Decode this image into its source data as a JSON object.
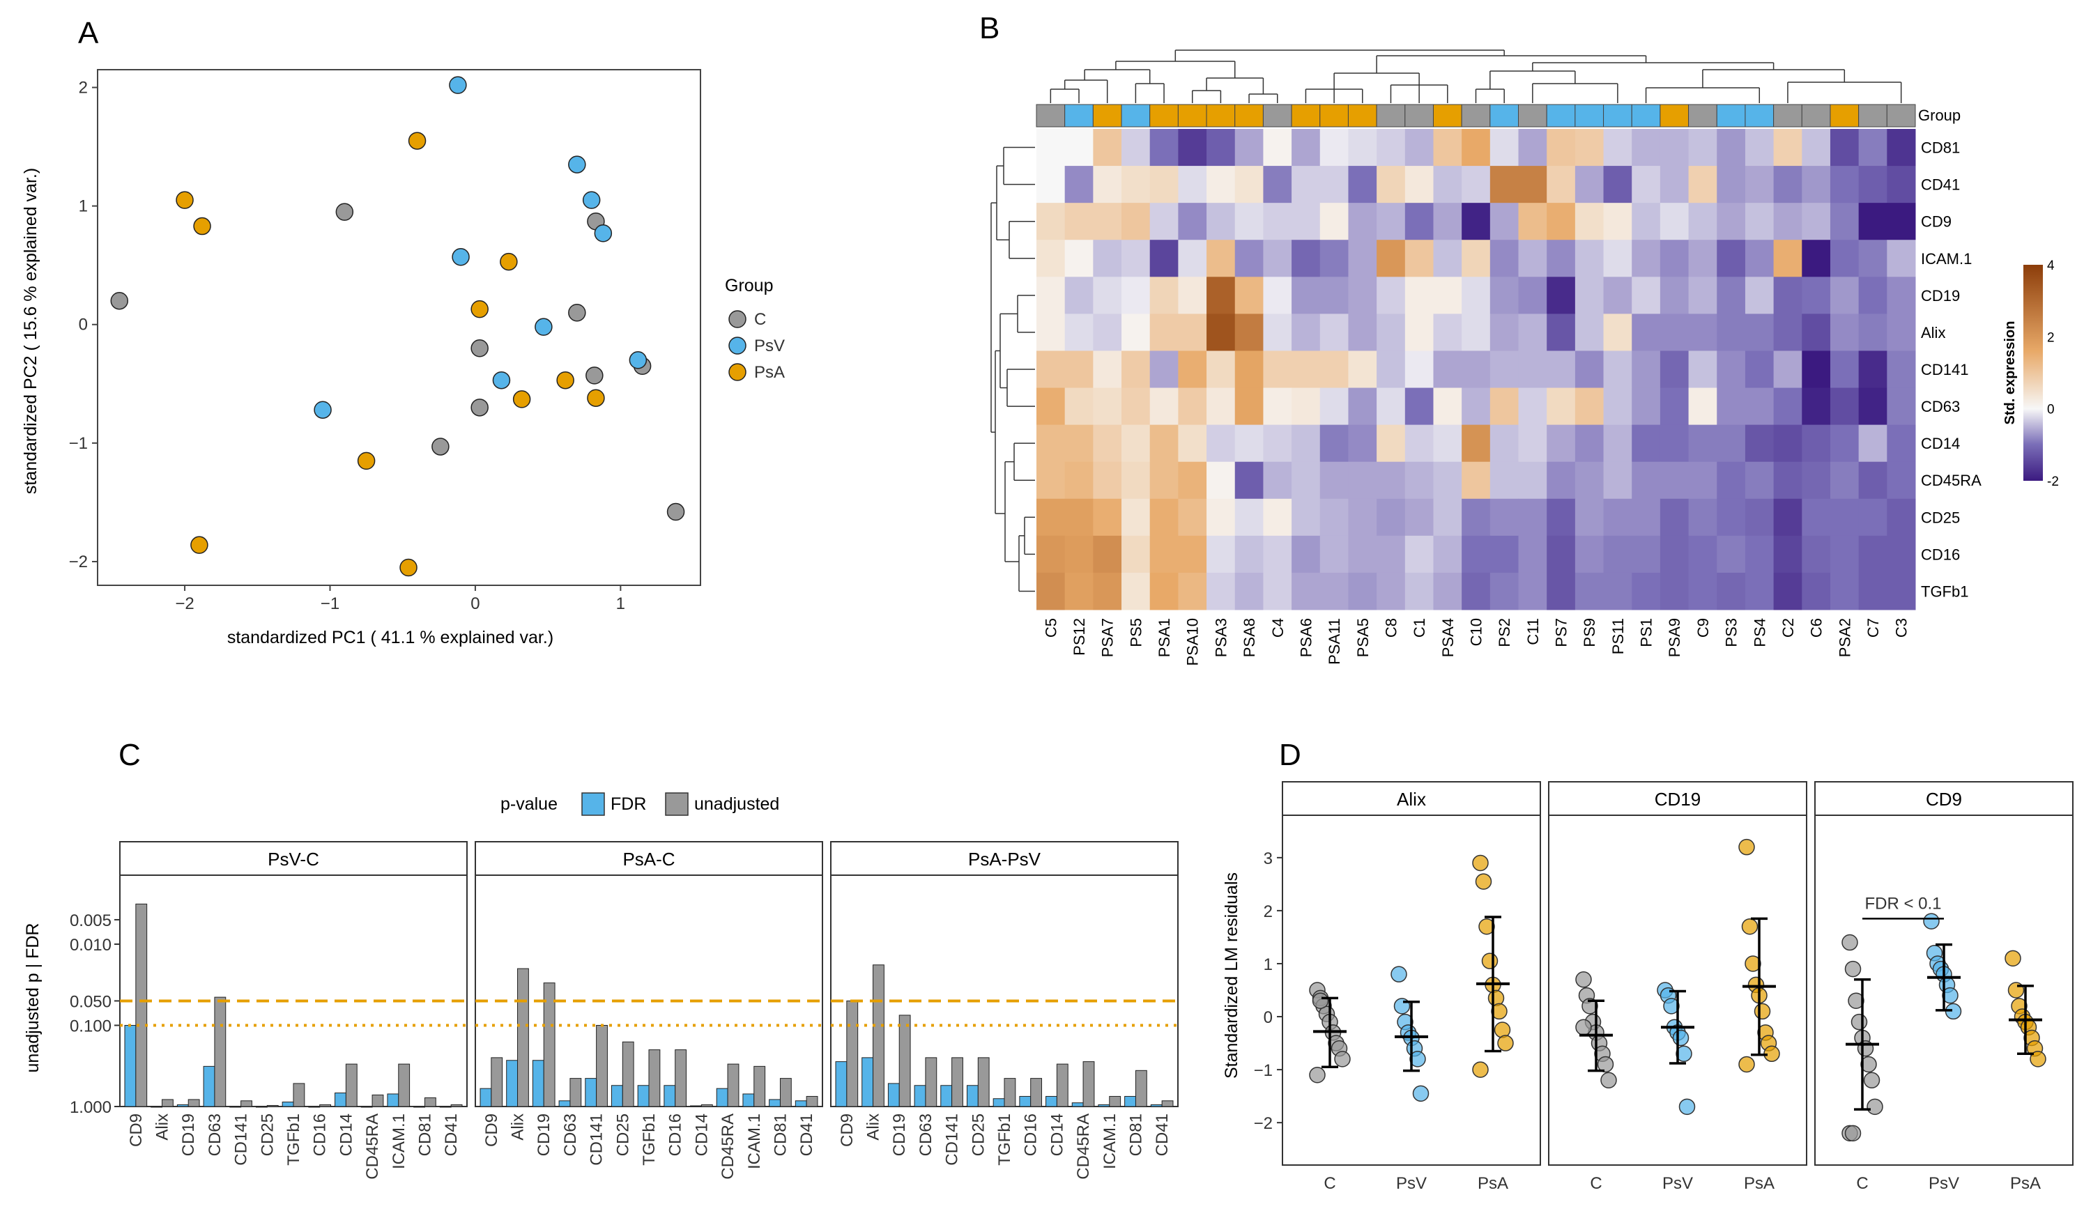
{
  "panels": {
    "A": "A",
    "B": "B",
    "C": "C",
    "D": "D"
  },
  "colors": {
    "C": "#999999",
    "PsV": "#56B4E9",
    "PsA": "#E69F00",
    "FDR": "#56B4E9",
    "unadjusted": "#999999",
    "hm_low": "#3B1A80",
    "hm_mid": "#F7F7F7",
    "hm_high": "#8C3D0A",
    "dash": "#E69F00"
  },
  "chart_data": [
    {
      "id": "A",
      "type": "scatter",
      "xlabel": "standardized PC1 ( 41.1 % explained var.)",
      "ylabel": "standardized PC2 ( 15.6 % explained var.)",
      "xlim": [
        -2.6,
        1.55
      ],
      "ylim": [
        -2.2,
        2.15
      ],
      "xticks": [
        "−2",
        "−1",
        "0",
        "1"
      ],
      "yticks": [
        "−2",
        "−1",
        "0",
        "1",
        "2"
      ],
      "legend": {
        "title": "Group",
        "items": [
          "C",
          "PsV",
          "PsA"
        ]
      },
      "points": [
        {
          "g": "C",
          "x": -2.45,
          "y": 0.2
        },
        {
          "g": "C",
          "x": -0.9,
          "y": 0.95
        },
        {
          "g": "C",
          "x": 0.83,
          "y": 0.87
        },
        {
          "g": "C",
          "x": 0.7,
          "y": 0.1
        },
        {
          "g": "C",
          "x": 0.03,
          "y": -0.2
        },
        {
          "g": "C",
          "x": 0.03,
          "y": -0.7
        },
        {
          "g": "C",
          "x": 0.82,
          "y": -0.43
        },
        {
          "g": "C",
          "x": 1.15,
          "y": -0.35
        },
        {
          "g": "C",
          "x": -0.24,
          "y": -1.03
        },
        {
          "g": "C",
          "x": 1.38,
          "y": -1.58
        },
        {
          "g": "PsV",
          "x": -0.12,
          "y": 2.02
        },
        {
          "g": "PsV",
          "x": 0.7,
          "y": 1.35
        },
        {
          "g": "PsV",
          "x": 0.8,
          "y": 1.05
        },
        {
          "g": "PsV",
          "x": 0.88,
          "y": 0.77
        },
        {
          "g": "PsV",
          "x": -0.1,
          "y": 0.57
        },
        {
          "g": "PsV",
          "x": 0.47,
          "y": -0.02
        },
        {
          "g": "PsV",
          "x": 0.18,
          "y": -0.47
        },
        {
          "g": "PsV",
          "x": 1.12,
          "y": -0.3
        },
        {
          "g": "PsV",
          "x": -1.05,
          "y": -0.72
        },
        {
          "g": "PsA",
          "x": -0.4,
          "y": 1.55
        },
        {
          "g": "PsA",
          "x": -2.0,
          "y": 1.05
        },
        {
          "g": "PsA",
          "x": -1.88,
          "y": 0.83
        },
        {
          "g": "PsA",
          "x": 0.23,
          "y": 0.53
        },
        {
          "g": "PsA",
          "x": 0.03,
          "y": 0.13
        },
        {
          "g": "PsA",
          "x": 0.32,
          "y": -0.63
        },
        {
          "g": "PsA",
          "x": 0.62,
          "y": -0.47
        },
        {
          "g": "PsA",
          "x": 0.83,
          "y": -0.62
        },
        {
          "g": "PsA",
          "x": -0.75,
          "y": -1.15
        },
        {
          "g": "PsA",
          "x": -1.9,
          "y": -1.86
        },
        {
          "g": "PsA",
          "x": -0.46,
          "y": -2.05
        }
      ]
    },
    {
      "id": "B",
      "type": "heatmap",
      "group_label": "Group",
      "legend_title": "Std. expression",
      "legend_ticks": [
        "4",
        "2",
        "0",
        "-2"
      ],
      "vmin": -2,
      "vmax": 4,
      "columns": [
        "C5",
        "PS12",
        "PSA7",
        "PS5",
        "PSA1",
        "PSA10",
        "PSA3",
        "PSA8",
        "C4",
        "PSA6",
        "PSA11",
        "PSA5",
        "C8",
        "C1",
        "PSA4",
        "C10",
        "PS2",
        "C11",
        "PS7",
        "PS9",
        "PS11",
        "PS1",
        "PSA9",
        "C9",
        "PS3",
        "PS4",
        "C2",
        "C6",
        "PSA2",
        "C7",
        "C3"
      ],
      "column_groups": [
        "C",
        "PsV",
        "PsA",
        "PsV",
        "PsA",
        "PsA",
        "PsA",
        "PsA",
        "C",
        "PsA",
        "PsA",
        "PsA",
        "C",
        "C",
        "PsA",
        "C",
        "PsV",
        "C",
        "PsV",
        "PsV",
        "PsV",
        "PsV",
        "PsA",
        "C",
        "PsV",
        "PsV",
        "C",
        "C",
        "PsA",
        "C",
        "C"
      ],
      "rows": [
        "CD81",
        "CD41",
        "CD9",
        "ICAM.1",
        "CD19",
        "Alix",
        "CD141",
        "CD63",
        "CD14",
        "CD45RA",
        "CD25",
        "CD16",
        "TGFb1"
      ],
      "values": [
        [
          0,
          0,
          1.0,
          -0.3,
          -1.0,
          -1.6,
          -1.2,
          -0.6,
          0.1,
          -0.6,
          -0.1,
          -0.2,
          -0.3,
          -0.5,
          1.0,
          1.6,
          -0.2,
          -0.6,
          1.0,
          0.9,
          -0.3,
          -0.5,
          -0.5,
          -0.4,
          -0.7,
          -0.4,
          0.8,
          -0.4,
          -1.4,
          -0.9,
          -1.7
        ],
        [
          0,
          -0.8,
          0.3,
          0.5,
          0.6,
          -0.2,
          0.2,
          0.4,
          -0.9,
          -0.3,
          -0.3,
          -1.0,
          0.7,
          0.3,
          -0.4,
          -0.3,
          2.5,
          2.5,
          0.8,
          -0.6,
          -1.2,
          -0.3,
          -0.5,
          0.8,
          -0.7,
          -0.6,
          -0.9,
          -0.7,
          -1.0,
          -1.2,
          -1.4
        ],
        [
          0.6,
          0.8,
          0.8,
          1.0,
          -0.3,
          -0.8,
          -0.4,
          -0.2,
          -0.3,
          -0.3,
          0.2,
          -0.6,
          -0.5,
          -1.0,
          -0.6,
          -1.9,
          -0.6,
          1.2,
          1.5,
          0.5,
          0.3,
          -0.4,
          -0.2,
          -0.4,
          -0.6,
          -0.4,
          -0.6,
          -0.5,
          -0.9,
          -2.0,
          -2.0
        ],
        [
          0.4,
          0.1,
          -0.4,
          -0.3,
          -1.5,
          -0.2,
          1.2,
          -0.8,
          -0.5,
          -1.1,
          -0.9,
          -0.6,
          2.0,
          1.0,
          -0.4,
          0.7,
          -0.8,
          -0.5,
          -0.8,
          -0.4,
          -0.2,
          -0.6,
          -0.8,
          -0.6,
          -1.2,
          -0.8,
          1.5,
          -2.0,
          -1.0,
          -0.9,
          -0.5
        ],
        [
          0.2,
          -0.4,
          -0.2,
          -0.1,
          0.7,
          0.3,
          3.2,
          1.3,
          -0.1,
          -0.7,
          -0.7,
          -0.6,
          -0.3,
          0.2,
          0.2,
          -0.2,
          -0.7,
          -0.8,
          -1.8,
          -0.4,
          -0.6,
          -0.3,
          -0.7,
          -0.5,
          -0.9,
          -0.4,
          -1.1,
          -1.0,
          -0.7,
          -1.0,
          -0.8
        ],
        [
          0.2,
          -0.2,
          -0.3,
          0.1,
          0.9,
          0.9,
          3.5,
          2.6,
          -0.2,
          -0.5,
          -0.3,
          -0.6,
          -0.4,
          0.2,
          -0.3,
          -0.2,
          -0.6,
          -0.5,
          -1.3,
          -0.4,
          0.5,
          -0.8,
          -0.8,
          -0.8,
          -0.9,
          -0.9,
          -1.1,
          -1.4,
          -0.8,
          -0.9,
          -0.8
        ],
        [
          1.0,
          1.0,
          0.3,
          0.9,
          -0.6,
          1.5,
          0.6,
          1.7,
          0.8,
          0.8,
          0.8,
          0.4,
          -0.4,
          -0.1,
          -0.6,
          -0.6,
          -0.5,
          -0.5,
          -0.5,
          -0.8,
          -0.4,
          -0.7,
          -1.1,
          -0.4,
          -0.8,
          -1.0,
          -0.6,
          -2.0,
          -1.0,
          -1.8,
          -0.9
        ],
        [
          1.5,
          0.6,
          0.5,
          0.8,
          0.3,
          0.9,
          0.3,
          1.7,
          0.2,
          0.3,
          -0.2,
          -0.7,
          -0.2,
          -1.0,
          0.2,
          -0.5,
          1.0,
          -0.3,
          0.6,
          1.0,
          -0.4,
          -0.7,
          -1.0,
          0.2,
          -0.8,
          -0.8,
          -1.0,
          -1.9,
          -1.4,
          -1.9,
          -0.9
        ],
        [
          1.2,
          1.2,
          0.8,
          0.5,
          1.2,
          0.5,
          -0.3,
          -0.2,
          -0.3,
          -0.4,
          -0.9,
          -0.8,
          0.6,
          -0.3,
          -0.2,
          2.1,
          -0.4,
          -0.3,
          -0.6,
          -0.8,
          -0.5,
          -1.0,
          -1.0,
          -0.9,
          -0.9,
          -1.3,
          -1.4,
          -1.2,
          -1.0,
          -0.5,
          -1.0
        ],
        [
          1.2,
          1.3,
          0.9,
          0.6,
          1.2,
          1.4,
          0.1,
          -1.2,
          -0.5,
          -0.4,
          -0.6,
          -0.6,
          -0.6,
          -0.5,
          -0.4,
          1.0,
          -0.4,
          -0.4,
          -0.8,
          -0.7,
          -0.5,
          -0.8,
          -0.8,
          -0.8,
          -1.0,
          -0.9,
          -1.2,
          -1.1,
          -0.9,
          -1.2,
          -1.0
        ],
        [
          1.8,
          1.8,
          1.5,
          0.4,
          1.5,
          1.2,
          0.2,
          -0.2,
          0.2,
          -0.4,
          -0.5,
          -0.6,
          -0.7,
          -0.6,
          -0.4,
          -0.9,
          -0.8,
          -0.8,
          -1.2,
          -0.7,
          -0.8,
          -0.8,
          -1.1,
          -0.9,
          -1.0,
          -1.1,
          -1.6,
          -1.0,
          -1.0,
          -1.0,
          -1.2
        ],
        [
          2.0,
          1.9,
          2.2,
          0.6,
          1.5,
          1.5,
          -0.2,
          -0.4,
          -0.3,
          -0.7,
          -0.5,
          -0.6,
          -0.6,
          -0.3,
          -0.5,
          -1.0,
          -1.0,
          -0.8,
          -1.3,
          -0.8,
          -0.9,
          -0.9,
          -1.1,
          -1.0,
          -0.9,
          -1.0,
          -1.5,
          -1.1,
          -1.0,
          -1.2,
          -1.2
        ],
        [
          2.2,
          1.8,
          2.0,
          0.4,
          1.6,
          1.3,
          -0.3,
          -0.5,
          -0.3,
          -0.6,
          -0.6,
          -0.7,
          -0.6,
          -0.4,
          -0.6,
          -1.1,
          -0.9,
          -0.8,
          -1.3,
          -0.9,
          -0.9,
          -1.0,
          -1.1,
          -1.0,
          -1.1,
          -1.0,
          -1.6,
          -1.2,
          -1.0,
          -1.2,
          -1.2
        ]
      ]
    },
    {
      "id": "C",
      "type": "bar",
      "legend": {
        "title": "p-value",
        "items": [
          "FDR",
          "unadjusted"
        ]
      },
      "ylabel": "unadjusted p | FDR",
      "yticks": [
        "0.005",
        "0.010",
        "0.050",
        "0.100",
        "1.000"
      ],
      "ytick_values": [
        0.005,
        0.01,
        0.05,
        0.1,
        1.0
      ],
      "scale": "-log10",
      "thresholds": [
        0.05,
        0.1
      ],
      "facets": [
        {
          "strip": "PsV-C",
          "categories": [
            "CD9",
            "Alix",
            "CD19",
            "CD63",
            "CD141",
            "CD25",
            "TGFb1",
            "CD16",
            "CD14",
            "CD45RA",
            "ICAM.1",
            "CD81",
            "CD41"
          ],
          "FDR": [
            0.1,
            1.0,
            0.95,
            0.32,
            1.0,
            1.0,
            0.88,
            1.0,
            0.68,
            1.0,
            0.7,
            1.0,
            1.0
          ],
          "unadjusted": [
            0.0032,
            0.82,
            0.82,
            0.045,
            0.85,
            0.97,
            0.52,
            0.95,
            0.3,
            0.72,
            0.3,
            0.78,
            0.95
          ]
        },
        {
          "strip": "PsA-C",
          "categories": [
            "CD9",
            "Alix",
            "CD19",
            "CD63",
            "CD141",
            "CD25",
            "TGFb1",
            "CD16",
            "CD14",
            "CD45RA",
            "ICAM.1",
            "CD81",
            "CD41"
          ],
          "FDR": [
            0.6,
            0.27,
            0.27,
            0.85,
            0.45,
            0.55,
            0.55,
            0.55,
            0.98,
            0.6,
            0.7,
            0.82,
            0.85
          ],
          "unadjusted": [
            0.25,
            0.02,
            0.03,
            0.45,
            0.1,
            0.16,
            0.2,
            0.2,
            0.95,
            0.3,
            0.32,
            0.45,
            0.75
          ]
        },
        {
          "strip": "PsA-PsV",
          "categories": [
            "CD9",
            "Alix",
            "CD19",
            "CD63",
            "CD141",
            "CD25",
            "TGFb1",
            "CD16",
            "CD14",
            "CD45RA",
            "ICAM.1",
            "CD81",
            "CD41"
          ],
          "FDR": [
            0.28,
            0.25,
            0.52,
            0.55,
            0.55,
            0.55,
            0.8,
            0.75,
            0.75,
            0.9,
            0.95,
            0.75,
            0.95
          ],
          "unadjusted": [
            0.05,
            0.018,
            0.075,
            0.25,
            0.25,
            0.25,
            0.45,
            0.45,
            0.3,
            0.28,
            0.75,
            0.36,
            0.85
          ]
        }
      ]
    },
    {
      "id": "D",
      "type": "scatter",
      "ylabel": "Standardized LM residuals",
      "ylim": [
        -2.8,
        3.8
      ],
      "yticks": [
        "−2",
        "−1",
        "0",
        "1",
        "2",
        "3"
      ],
      "ytick_values": [
        -2,
        -1,
        0,
        1,
        2,
        3
      ],
      "categories": [
        "C",
        "PsV",
        "PsA"
      ],
      "annotation": "FDR < 0.1",
      "facets": [
        {
          "strip": "Alix",
          "groups": [
            {
              "g": "C",
              "mean": -0.28,
              "lo": -0.95,
              "hi": 0.35,
              "points": [
                0.5,
                0.35,
                0.2,
                0.05,
                -0.1,
                -0.3,
                -0.5,
                -0.6,
                -0.8,
                -1.1,
                0.3
              ]
            },
            {
              "g": "PsV",
              "mean": -0.38,
              "lo": -1.02,
              "hi": 0.28,
              "points": [
                0.8,
                0.2,
                -0.1,
                -0.3,
                -0.4,
                -0.6,
                -0.8,
                -1.45
              ]
            },
            {
              "g": "PsA",
              "mean": 0.62,
              "lo": -0.65,
              "hi": 1.88,
              "points": [
                2.9,
                2.55,
                1.7,
                1.05,
                0.6,
                0.35,
                0.1,
                -0.25,
                -0.5,
                -1.0
              ]
            }
          ]
        },
        {
          "strip": "CD19",
          "groups": [
            {
              "g": "C",
              "mean": -0.35,
              "lo": -1.02,
              "hi": 0.3,
              "points": [
                0.7,
                0.4,
                0.2,
                -0.1,
                -0.3,
                -0.5,
                -0.7,
                -0.9,
                -1.2,
                -0.2
              ]
            },
            {
              "g": "PsV",
              "mean": -0.2,
              "lo": -0.88,
              "hi": 0.48,
              "points": [
                0.5,
                0.4,
                0.2,
                -0.2,
                -0.3,
                -0.4,
                -0.7,
                -1.7
              ]
            },
            {
              "g": "PsA",
              "mean": 0.57,
              "lo": -0.72,
              "hi": 1.85,
              "points": [
                3.2,
                1.7,
                1.0,
                0.6,
                0.4,
                0.1,
                -0.3,
                -0.5,
                -0.7,
                -0.9
              ]
            }
          ]
        },
        {
          "strip": "CD9",
          "groups": [
            {
              "g": "C",
              "mean": -0.52,
              "lo": -1.75,
              "hi": 0.7,
              "points": [
                1.4,
                0.9,
                0.3,
                -0.1,
                -0.4,
                -0.6,
                -0.9,
                -1.2,
                -1.7,
                -2.2,
                -2.2
              ]
            },
            {
              "g": "PsV",
              "mean": 0.74,
              "lo": 0.12,
              "hi": 1.36,
              "points": [
                1.8,
                1.2,
                1.0,
                0.9,
                0.8,
                0.6,
                0.4,
                0.1
              ]
            },
            {
              "g": "PsA",
              "mean": -0.06,
              "lo": -0.7,
              "hi": 0.58,
              "points": [
                1.1,
                0.5,
                0.2,
                0.0,
                -0.1,
                -0.2,
                -0.4,
                -0.6,
                -0.8
              ]
            }
          ]
        }
      ]
    }
  ]
}
